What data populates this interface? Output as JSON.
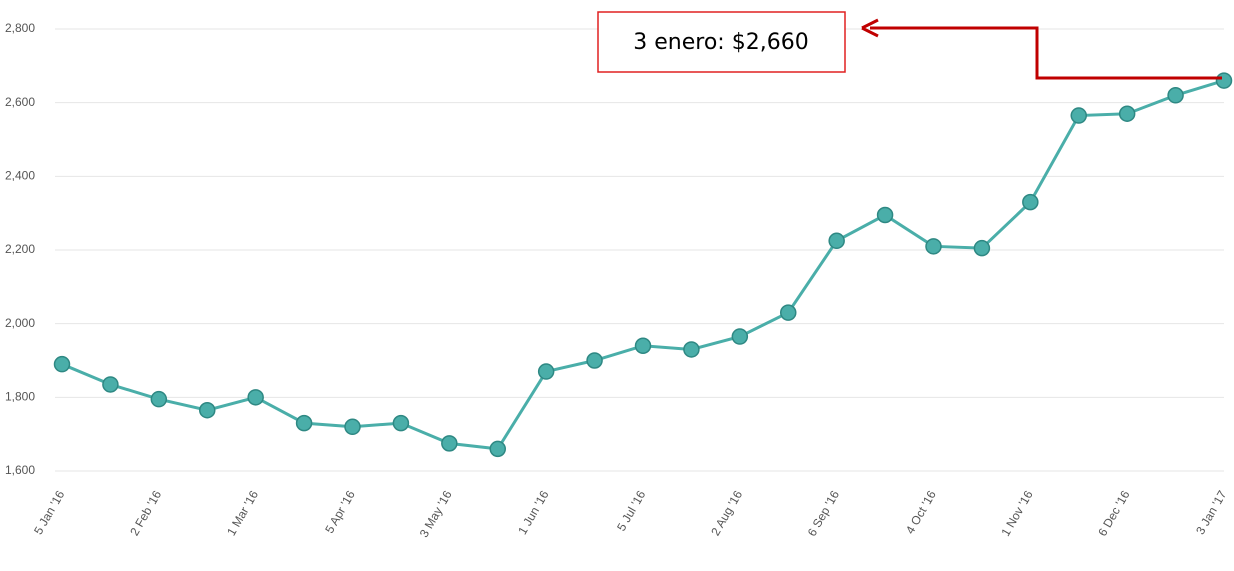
{
  "chart_data": {
    "type": "line",
    "categories": [
      "5 Jan '16",
      null,
      "2 Feb '16",
      null,
      "1 Mar '16",
      null,
      "5 Apr '16",
      null,
      "3 May '16",
      null,
      "1 Jun '16",
      null,
      "5 Jul '16",
      null,
      "2 Aug '16",
      null,
      "6 Sep '16",
      null,
      "4 Oct '16",
      null,
      "1 Nov '16",
      null,
      "6 Dec '16",
      null,
      "3 Jan '17"
    ],
    "values": [
      1890,
      1835,
      1795,
      1765,
      1800,
      1730,
      1720,
      1730,
      1675,
      1660,
      1870,
      1900,
      1940,
      1930,
      1965,
      2030,
      2225,
      2295,
      2210,
      2205,
      2330,
      2565,
      2570,
      2620,
      2660
    ],
    "color": "#4aaea9",
    "ylim": [
      1600,
      2800
    ],
    "yticks": [
      {
        "value": 1600,
        "label": "1,600"
      },
      {
        "value": 1800,
        "label": "1,800"
      },
      {
        "value": 2000,
        "label": "2,000"
      },
      {
        "value": 2200,
        "label": "2,200"
      },
      {
        "value": 2400,
        "label": "2,400"
      },
      {
        "value": 2600,
        "label": "2,600"
      },
      {
        "value": 2800,
        "label": "2,800"
      }
    ],
    "grid": true,
    "annotation": "3 enero: $2,660"
  }
}
